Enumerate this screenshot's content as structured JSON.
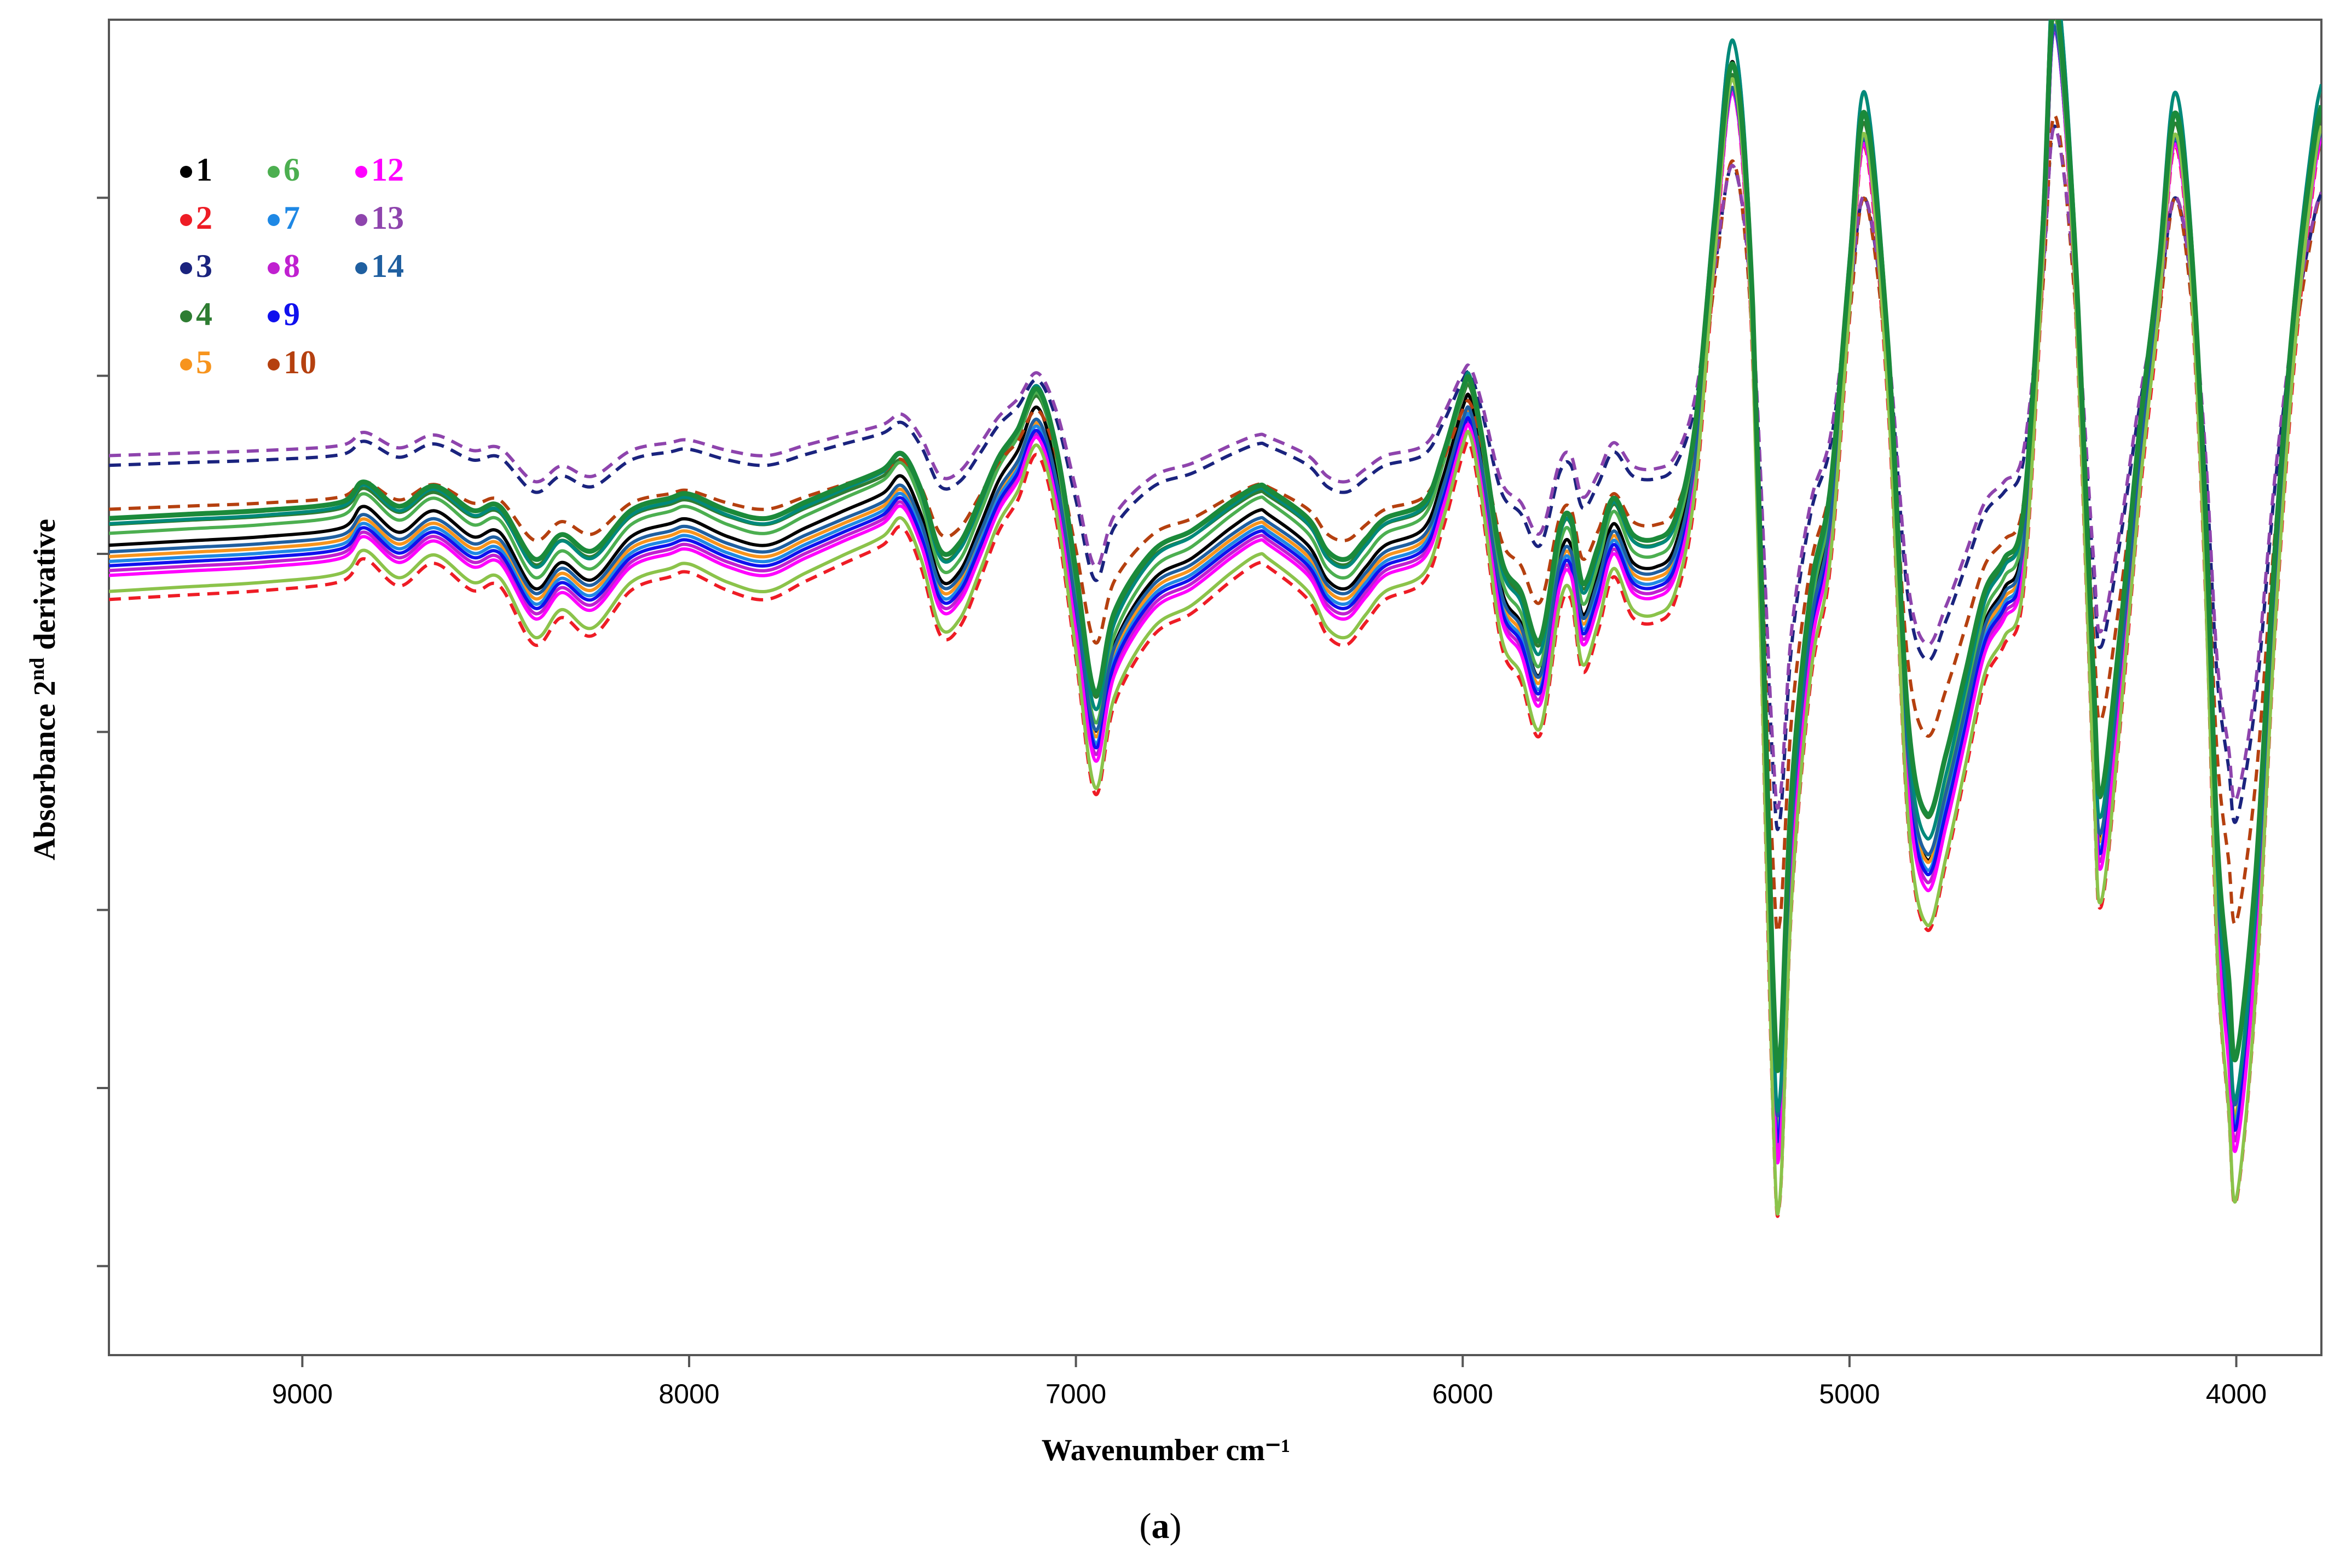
{
  "chart_data": {
    "type": "line",
    "xlabel": "Wavenumber cm⁻¹",
    "ylabel_main": "Absorbance 2",
    "ylabel_sup": "nd",
    "ylabel_rest": " derivative",
    "xlim": [
      9500,
      3780
    ],
    "x_reversed": true,
    "ylim": [
      -20,
      11
    ],
    "x_ticks": [
      9000,
      8000,
      7000,
      6000,
      5000,
      4000
    ],
    "y_tick_labels_shown": false,
    "grid": false,
    "legend_placement": "top-left",
    "caption": {
      "open": "(",
      "letter": "a",
      "close": ")"
    },
    "base_profile": {
      "x": [
        9500,
        9300,
        9100,
        8900,
        8840,
        8750,
        8660,
        8560,
        8490,
        8400,
        8330,
        8250,
        8150,
        8050,
        8000,
        7900,
        7800,
        7700,
        7600,
        7500,
        7450,
        7400,
        7350,
        7300,
        7250,
        7200,
        7150,
        7100,
        7050,
        7000,
        6950,
        6900,
        6800,
        6700,
        6600,
        6530,
        6500,
        6400,
        6350,
        6300,
        6250,
        6200,
        6100,
        6050,
        6000,
        5980,
        5950,
        5900,
        5850,
        5800,
        5750,
        5720,
        5690,
        5650,
        5610,
        5560,
        5500,
        5450,
        5400,
        5350,
        5300,
        5250,
        5200,
        5180,
        5150,
        5100,
        5050,
        5000,
        4960,
        4900,
        4850,
        4800,
        4750,
        4700,
        4650,
        4600,
        4550,
        4500,
        4470,
        4420,
        4370,
        4350,
        4300,
        4250,
        4200,
        4160,
        4120,
        4080,
        4050,
        4020,
        4000,
        3950,
        3900,
        3850,
        3800,
        3780
      ],
      "y": [
        -1.2,
        -1.1,
        -1.0,
        -0.8,
        -0.3,
        -0.9,
        -0.4,
        -1.0,
        -0.9,
        -2.2,
        -1.6,
        -2.0,
        -1.0,
        -0.7,
        -0.6,
        -1.0,
        -1.2,
        -0.8,
        -0.4,
        0.0,
        0.4,
        -0.5,
        -2.0,
        -1.8,
        -0.8,
        0.3,
        1.0,
        2.0,
        0.5,
        -2.5,
        -5.5,
        -3.5,
        -2.0,
        -1.5,
        -0.8,
        -0.4,
        -0.5,
        -1.2,
        -2.0,
        -2.2,
        -1.7,
        -1.2,
        -0.8,
        0.4,
        2.0,
        2.2,
        0.8,
        -2.2,
        -3.0,
        -4.2,
        -1.5,
        -1.2,
        -2.8,
        -1.9,
        -0.7,
        -1.6,
        -1.7,
        -1.2,
        1.0,
        6.0,
        10.0,
        4.0,
        -12.0,
        -14.5,
        -8.0,
        -3.0,
        -0.5,
        5.0,
        8.8,
        3.0,
        -6.0,
        -8.5,
        -7.0,
        -5.0,
        -3.0,
        -2.2,
        -1.0,
        6.0,
        11.5,
        6.0,
        -5.0,
        -8.0,
        -4.0,
        1.0,
        5.0,
        8.8,
        6.0,
        -1.0,
        -9.0,
        -12.5,
        -14.5,
        -10.0,
        -2.0,
        4.0,
        8.0,
        9.0
      ]
    },
    "series": [
      {
        "name": "1",
        "color": "#000000",
        "dash": false,
        "width": 6,
        "scale": 1.0,
        "offset": 0.0
      },
      {
        "name": "2",
        "color": "#ee1c25",
        "dash": true,
        "width": 6,
        "scale": 1.05,
        "offset": -1.2
      },
      {
        "name": "3",
        "color": "#1a237e",
        "dash": true,
        "width": 6,
        "scale": 0.62,
        "offset": 1.4
      },
      {
        "name": "4",
        "color": "#2e7d32",
        "dash": false,
        "width": 6,
        "scale": 0.93,
        "offset": 0.4
      },
      {
        "name": "5",
        "color": "#f7941d",
        "dash": false,
        "width": 6,
        "scale": 0.97,
        "offset": -0.3
      },
      {
        "name": "6",
        "color": "#4caf50",
        "dash": false,
        "width": 6,
        "scale": 1.02,
        "offset": 0.3
      },
      {
        "name": "7",
        "color": "#1e88e5",
        "dash": false,
        "width": 6,
        "scale": 0.98,
        "offset": -0.4
      },
      {
        "name": "8",
        "color": "#c020d0",
        "dash": false,
        "width": 6,
        "scale": 0.99,
        "offset": -0.6
      },
      {
        "name": "9",
        "color": "#1010ee",
        "dash": false,
        "width": 6,
        "scale": 0.98,
        "offset": -0.5
      },
      {
        "name": "10",
        "color": "#b5400f",
        "dash": true,
        "width": 6,
        "scale": 0.72,
        "offset": 0.5
      },
      {
        "name": "12",
        "color": "#ff00ff",
        "dash": false,
        "width": 6,
        "scale": 1.0,
        "offset": -0.7
      },
      {
        "name": "13",
        "color": "#8e44ad",
        "dash": true,
        "width": 6,
        "scale": 0.6,
        "offset": 1.6
      },
      {
        "name": "14",
        "color": "#1f5fa0",
        "dash": false,
        "width": 6,
        "scale": 0.96,
        "offset": -0.2
      }
    ],
    "extra_lines": [
      {
        "color": "#8bc34a",
        "dash": false,
        "width": 6,
        "scale": 1.06,
        "offset": -1.0
      },
      {
        "color": "#00897b",
        "dash": false,
        "width": 6,
        "scale": 1.0,
        "offset": 0.5
      },
      {
        "color": "#1b8a3a",
        "dash": false,
        "width": 9,
        "scale": 0.94,
        "offset": 0.55
      }
    ]
  }
}
